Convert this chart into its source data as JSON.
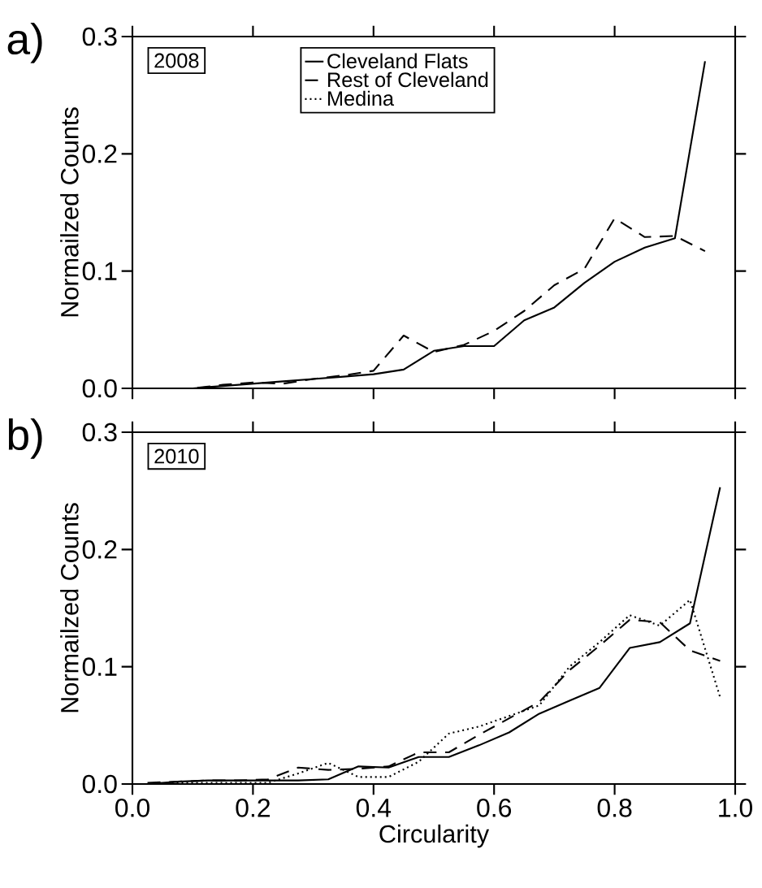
{
  "chart_data": [
    {
      "type": "line",
      "ylabel": "Normailzed Counts",
      "annotations": [
        "a)",
        "2008"
      ],
      "xlim": [
        0,
        1
      ],
      "ylim": [
        0,
        0.3
      ],
      "xticks": [
        0,
        0.2,
        0.4,
        0.6,
        0.8,
        1
      ],
      "yticks": [
        {
          "value": 0,
          "label": "0.0"
        },
        0.1,
        0.2,
        0.3
      ],
      "tick_labels": "y",
      "legend": "top",
      "series": [
        {
          "name": "Cleveland Flats",
          "color": "#000000",
          "line_style": "solid",
          "x": [
            0,
            0.05,
            0.1,
            0.15,
            0.2,
            0.25,
            0.3,
            0.35,
            0.4,
            0.45,
            0.5,
            0.55,
            0.6,
            0.65,
            0.7,
            0.75,
            0.8,
            0.85,
            0.9,
            0.95
          ],
          "values": [
            0,
            0,
            0,
            0.002,
            0.004,
            0.006,
            0.008,
            0.01,
            0.012,
            0.016,
            0.032,
            0.036,
            0.036,
            0.058,
            0.069,
            0.09,
            0.108,
            0.12,
            0.128,
            0.279
          ]
        },
        {
          "name": "Rest of Cleveland",
          "color": "#000000",
          "line_style": "dashed",
          "x": [
            0,
            0.05,
            0.1,
            0.15,
            0.2,
            0.25,
            0.3,
            0.35,
            0.4,
            0.45,
            0.5,
            0.55,
            0.6,
            0.65,
            0.7,
            0.75,
            0.8,
            0.85,
            0.9,
            0.95
          ],
          "values": [
            0,
            0,
            0,
            0.003,
            0.005,
            0.004,
            0.008,
            0.011,
            0.015,
            0.045,
            0.031,
            0.037,
            0.049,
            0.066,
            0.088,
            0.102,
            0.145,
            0.129,
            0.13,
            0.117
          ]
        },
        {
          "name": "Medina",
          "color": "#000000",
          "line_style": "dotted"
        }
      ]
    },
    {
      "type": "line",
      "xlabel": "Circularity",
      "ylabel": "Normailzed Counts",
      "annotations": [
        "b)",
        "2010"
      ],
      "xlim": [
        0,
        1
      ],
      "ylim": [
        0,
        0.3
      ],
      "xticks": [
        {
          "value": 0,
          "label": "0.0"
        },
        0.2,
        0.4,
        0.6,
        0.8,
        {
          "value": 1,
          "label": "1.0"
        }
      ],
      "yticks": [
        {
          "value": 0,
          "label": "0.0"
        },
        0.1,
        0.2,
        0.3
      ],
      "series": [
        {
          "color": "#000000",
          "line_style": "solid",
          "x": [
            0.025,
            0.075,
            0.125,
            0.175,
            0.225,
            0.275,
            0.325,
            0.375,
            0.425,
            0.475,
            0.525,
            0.575,
            0.625,
            0.675,
            0.725,
            0.775,
            0.825,
            0.875,
            0.925,
            0.975
          ],
          "values": [
            0.0,
            0.002,
            0.003,
            0.003,
            0.003,
            0.003,
            0.004,
            0.015,
            0.014,
            0.023,
            0.023,
            0.033,
            0.044,
            0.06,
            0.071,
            0.082,
            0.116,
            0.121,
            0.137,
            0.253
          ]
        },
        {
          "color": "#000000",
          "line_style": "dashed",
          "x": [
            0.025,
            0.075,
            0.125,
            0.175,
            0.225,
            0.275,
            0.325,
            0.375,
            0.425,
            0.475,
            0.525,
            0.575,
            0.625,
            0.675,
            0.725,
            0.775,
            0.825,
            0.875,
            0.925,
            0.975
          ],
          "values": [
            0.001,
            0.002,
            0.003,
            0.003,
            0.004,
            0.014,
            0.012,
            0.013,
            0.015,
            0.027,
            0.027,
            0.042,
            0.056,
            0.07,
            0.097,
            0.118,
            0.14,
            0.138,
            0.114,
            0.105
          ]
        },
        {
          "color": "#000000",
          "line_style": "dotted",
          "x": [
            0.025,
            0.075,
            0.125,
            0.175,
            0.225,
            0.275,
            0.325,
            0.375,
            0.425,
            0.475,
            0.525,
            0.575,
            0.625,
            0.675,
            0.725,
            0.775,
            0.825,
            0.875,
            0.925,
            0.975
          ],
          "values": [
            0.0,
            0.001,
            0.001,
            0.001,
            0.001,
            0.009,
            0.018,
            0.006,
            0.006,
            0.019,
            0.043,
            0.049,
            0.058,
            0.067,
            0.1,
            0.121,
            0.144,
            0.135,
            0.157,
            0.074
          ]
        }
      ]
    }
  ]
}
